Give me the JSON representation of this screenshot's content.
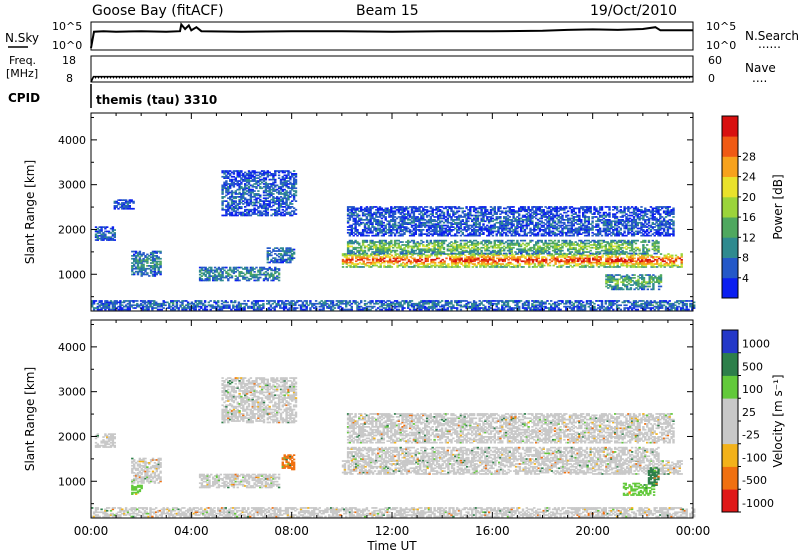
{
  "header": {
    "station": "Goose Bay (fitACF)",
    "beam": "Beam 15",
    "date": "19/Oct/2010"
  },
  "noise_panel": {
    "left_label": "N.Sky",
    "right_label": "N.Search",
    "tick_top": "10^5",
    "tick_bottom": "10^0",
    "legend_dots": "......",
    "n_sky_log10_trace": [
      [
        0.0,
        0.0
      ],
      [
        0.12,
        3.6
      ],
      [
        0.5,
        3.7
      ],
      [
        1.0,
        3.6
      ],
      [
        2.0,
        3.7
      ],
      [
        3.0,
        3.6
      ],
      [
        3.55,
        3.7
      ],
      [
        3.6,
        5.2
      ],
      [
        3.75,
        4.2
      ],
      [
        3.9,
        5.0
      ],
      [
        4.0,
        3.9
      ],
      [
        4.2,
        4.6
      ],
      [
        4.4,
        3.7
      ],
      [
        6.0,
        3.6
      ],
      [
        8.0,
        3.7
      ],
      [
        10.0,
        3.7
      ],
      [
        12.0,
        3.6
      ],
      [
        14.0,
        3.7
      ],
      [
        16.0,
        3.7
      ],
      [
        18.0,
        3.8
      ],
      [
        19.0,
        4.0
      ],
      [
        20.0,
        4.1
      ],
      [
        21.0,
        4.0
      ],
      [
        22.0,
        4.2
      ],
      [
        22.5,
        4.6
      ],
      [
        22.7,
        3.9
      ],
      [
        23.0,
        3.9
      ],
      [
        24.0,
        3.9
      ]
    ]
  },
  "freq_panel": {
    "left_label_1": "Freq.",
    "left_label_2": "[MHz]",
    "right_label": "Nave",
    "left_ticks": [
      "18",
      "8"
    ],
    "right_ticks": [
      "60",
      "0"
    ],
    "legend_dots": "....",
    "freq_mhz_trace": [
      [
        0.0,
        8.0
      ],
      [
        0.1,
        10.2
      ],
      [
        24.0,
        10.2
      ]
    ]
  },
  "cpid": {
    "label": "CPID",
    "text": "themis (tau) 3310"
  },
  "chart_data": [
    {
      "type": "heatmap",
      "parameter": "Power",
      "ylabel": "Slant Range [km]",
      "colorbar_title": "Power [dB]",
      "colorbar_ticks": [
        4,
        8,
        12,
        16,
        20,
        24,
        28
      ],
      "colors": [
        "#0b1ff0",
        "#2458c8",
        "#2f8a8f",
        "#4fa85f",
        "#9bd43a",
        "#e9e22b",
        "#f7a21c",
        "#f05a14",
        "#d81010"
      ],
      "xlim_hours": [
        0,
        24
      ],
      "ylim_km": [
        180,
        4600
      ],
      "y_ticks": [
        1000,
        2000,
        3000,
        4000
      ],
      "x_tick_labels": [
        "00:00",
        "04:00",
        "08:00",
        "12:00",
        "16:00",
        "20:00",
        "00:00"
      ],
      "regions": [
        {
          "t": [
            0.15,
            0.9
          ],
          "r": [
            1750,
            2050
          ],
          "level": 1.2
        },
        {
          "t": [
            0.9,
            1.7
          ],
          "r": [
            2450,
            2650
          ],
          "level": 1.0
        },
        {
          "t": [
            1.6,
            2.8
          ],
          "r": [
            950,
            1500
          ],
          "level": 2.0
        },
        {
          "t": [
            4.3,
            7.5
          ],
          "r": [
            850,
            1150
          ],
          "level": 2.2
        },
        {
          "t": [
            7.0,
            8.1
          ],
          "r": [
            1250,
            1600
          ],
          "level": 1.8
        },
        {
          "t": [
            5.2,
            8.2
          ],
          "r": [
            2300,
            3300
          ],
          "level": 1.1
        },
        {
          "t": [
            10.0,
            23.5
          ],
          "r": [
            1150,
            1450
          ],
          "level": 7.0
        },
        {
          "t": [
            10.2,
            22.6
          ],
          "r": [
            1450,
            1750
          ],
          "level": 3.5
        },
        {
          "t": [
            10.2,
            23.2
          ],
          "r": [
            1850,
            2500
          ],
          "level": 1.0
        },
        {
          "t": [
            20.5,
            22.7
          ],
          "r": [
            650,
            1000
          ],
          "level": 3.0
        },
        {
          "t": [
            0.0,
            24.0
          ],
          "r": [
            200,
            420
          ],
          "level": 1.4
        }
      ]
    },
    {
      "type": "heatmap",
      "parameter": "Velocity",
      "ylabel": "Slant Range [km]",
      "colorbar_title": "Velocity [m s⁻¹]",
      "colorbar_ticks": [
        1000,
        500,
        100,
        25,
        -25,
        -100,
        -500,
        -1000
      ],
      "colors": [
        "#2438c8",
        "#2d7f4a",
        "#62c93a",
        "#c8c8c8",
        "#c8c8c8",
        "#f3b21a",
        "#f07010",
        "#e01818"
      ],
      "xlim_hours": [
        0,
        24
      ],
      "ylim_km": [
        180,
        4600
      ],
      "y_ticks": [
        1000,
        2000,
        3000,
        4000
      ],
      "x_tick_labels": [
        "00:00",
        "04:00",
        "08:00",
        "12:00",
        "16:00",
        "20:00",
        "00:00"
      ],
      "xlabel": "Time UT",
      "regions": [
        {
          "t": [
            0.15,
            0.9
          ],
          "r": [
            1750,
            2050
          ],
          "v": 0
        },
        {
          "t": [
            1.6,
            2.8
          ],
          "r": [
            950,
            1500
          ],
          "v": 0
        },
        {
          "t": [
            1.6,
            2.0
          ],
          "r": [
            700,
            900
          ],
          "v": 150
        },
        {
          "t": [
            4.3,
            7.5
          ],
          "r": [
            850,
            1150
          ],
          "v": 0
        },
        {
          "t": [
            7.6,
            8.1
          ],
          "r": [
            1250,
            1600
          ],
          "v": -300
        },
        {
          "t": [
            5.2,
            8.2
          ],
          "r": [
            2300,
            3300
          ],
          "v": 0
        },
        {
          "t": [
            10.0,
            23.5
          ],
          "r": [
            1150,
            1450
          ],
          "v": 0
        },
        {
          "t": [
            10.2,
            22.6
          ],
          "r": [
            1450,
            1750
          ],
          "v": 0
        },
        {
          "t": [
            10.2,
            23.2
          ],
          "r": [
            1850,
            2500
          ],
          "v": 0
        },
        {
          "t": [
            21.2,
            22.4
          ],
          "r": [
            680,
            950
          ],
          "v": 150
        },
        {
          "t": [
            22.2,
            22.6
          ],
          "r": [
            900,
            1300
          ],
          "v": 600
        },
        {
          "t": [
            0.0,
            24.0
          ],
          "r": [
            200,
            420
          ],
          "v": 0
        }
      ]
    }
  ]
}
